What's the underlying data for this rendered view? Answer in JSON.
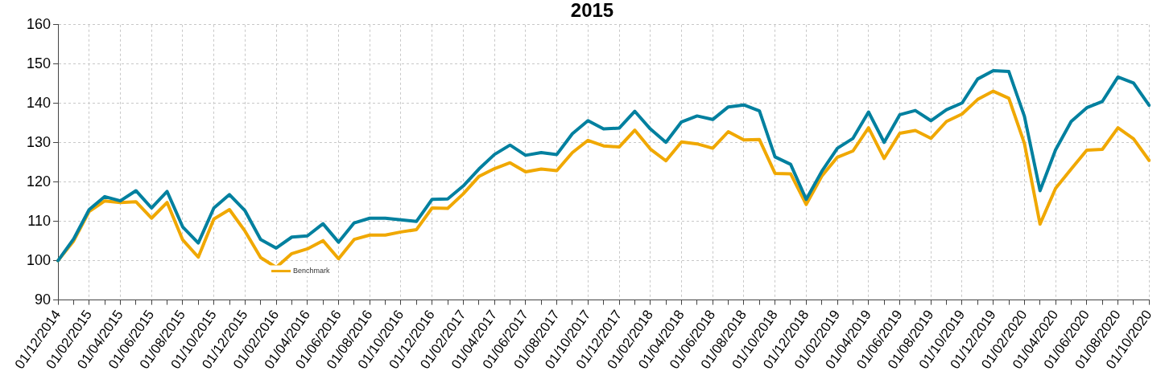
{
  "chart_data": {
    "type": "line",
    "title": "2015",
    "categories": [
      "01/12/2014",
      null,
      "01/02/2015",
      null,
      "01/04/2015",
      null,
      "01/06/2015",
      null,
      "01/08/2015",
      null,
      "01/10/2015",
      null,
      "01/12/2015",
      null,
      "01/02/2016",
      null,
      "01/04/2016",
      null,
      "01/06/2016",
      null,
      "01/08/2016",
      null,
      "01/10/2016",
      null,
      "01/12/2016",
      null,
      "01/02/2017",
      null,
      "01/04/2017",
      null,
      "01/06/2017",
      null,
      "01/08/2017",
      null,
      "01/10/2017",
      null,
      "01/12/2017",
      null,
      "01/02/2018",
      null,
      "01/04/2018",
      null,
      "01/06/2018",
      null,
      "01/08/2018",
      null,
      "01/10/2018",
      null,
      "01/12/2018",
      null,
      "01/02/2019",
      null,
      "01/04/2019",
      null,
      "01/06/2019",
      null,
      "01/08/2019",
      null,
      "01/10/2019",
      null,
      "01/12/2019",
      null,
      "01/02/2020",
      null,
      "01/04/2020",
      null,
      "01/06/2020",
      null,
      "01/08/2020",
      null,
      "01/10/2020"
    ],
    "series": [
      {
        "color": "#00809f",
        "values": [
          100,
          105.5,
          113,
          116.3,
          115.2,
          117.8,
          113.4,
          117.6,
          108.6,
          104.5,
          113.4,
          116.8,
          112.7,
          105.4,
          103.2,
          106,
          106.3,
          109.4,
          104.7,
          109.6,
          110.8,
          110.8,
          110.4,
          110,
          115.6,
          115.7,
          119,
          123.3,
          127,
          129.4,
          126.8,
          127.5,
          127,
          132.3,
          135.6,
          133.5,
          133.7,
          138,
          133.5,
          130.1,
          135.3,
          136.8,
          135.9,
          139.1,
          139.6,
          138.1,
          126.4,
          124.5,
          115.6,
          122.7,
          128.6,
          131.1,
          137.8,
          130.1,
          137.1,
          138.2,
          135.6,
          138.4,
          140.1,
          146.2,
          148.3,
          148.1,
          136.7,
          117.8,
          128.2,
          135.4,
          138.9,
          140.5,
          146.7,
          145.2,
          139.5
        ]
      },
      {
        "name": "Benchmark",
        "color": "#f0a800",
        "values": [
          100,
          105,
          112.5,
          115.2,
          114.8,
          115,
          110.8,
          114.8,
          105.3,
          100.9,
          110.6,
          113,
          107.5,
          100.8,
          98.3,
          101.8,
          103,
          105.1,
          100.5,
          105.4,
          106.5,
          106.5,
          107.3,
          107.9,
          113.4,
          113.3,
          117,
          121.4,
          123.4,
          124.9,
          122.6,
          123.3,
          122.9,
          127.5,
          130.6,
          129.2,
          128.9,
          133.2,
          128.4,
          125.4,
          130.2,
          129.7,
          128.6,
          132.8,
          130.7,
          130.8,
          122.2,
          122.1,
          114.3,
          121.5,
          126.3,
          127.9,
          133.8,
          126,
          132.4,
          133.1,
          131.1,
          135.4,
          137.3,
          141,
          143.1,
          141.3,
          129.8,
          109.3,
          118.4,
          123.3,
          128.1,
          128.3,
          133.8,
          131,
          125.5
        ]
      }
    ],
    "ylim": [
      90,
      160
    ],
    "yticks": [
      90,
      100,
      110,
      120,
      130,
      140,
      150,
      160
    ],
    "grid": true,
    "legend": "bottom left",
    "marker": "none",
    "line_style": "solid"
  }
}
